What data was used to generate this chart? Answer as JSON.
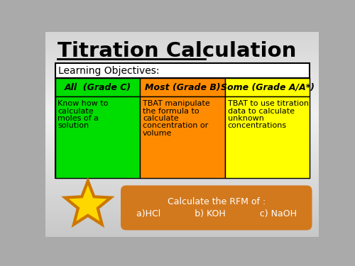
{
  "title": "Titration Calculation",
  "table_header": "Learning Objectives:",
  "col_headers": [
    "All  (Grade C)",
    "Most (Grade B)",
    "Some (Grade A/A*)"
  ],
  "col_header_colors": [
    "#00dd00",
    "#ff8c00",
    "#ffff00"
  ],
  "cell_colors": [
    "#00dd00",
    "#ff8c00",
    "#ffff00"
  ],
  "bottom_box_color": "#d2791e",
  "bottom_box_text_line1": "Calculate the RFM of :",
  "bottom_box_text_line2": "a)HCl            b) KOH            c) NaOH",
  "star_fill": "#ffd700",
  "star_edge": "#cc7700"
}
